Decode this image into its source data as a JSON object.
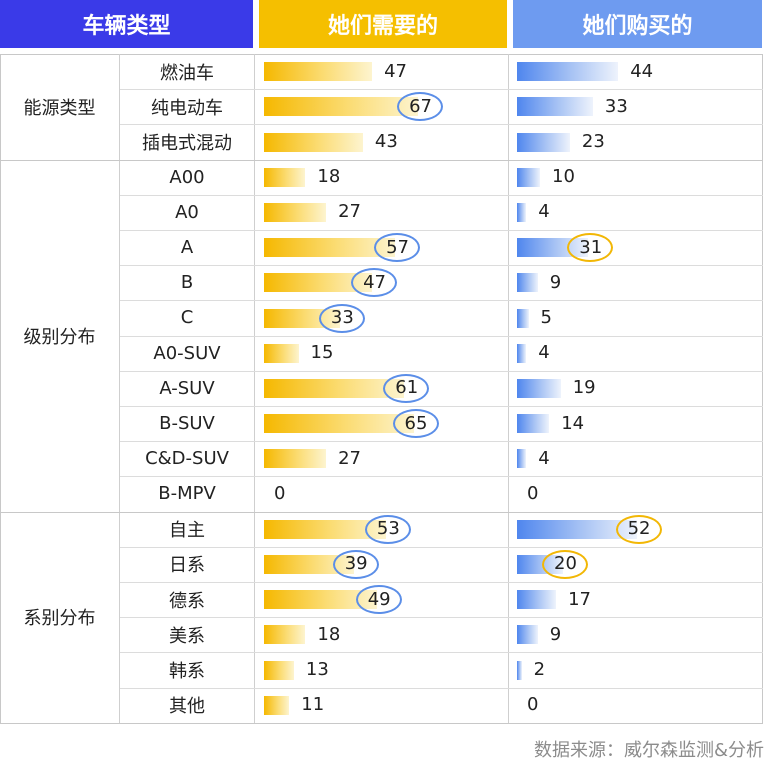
{
  "header": {
    "col1": "车辆类型",
    "col2": "她们需要的",
    "col3": "她们购买的",
    "col1_color": "#3a3ae8",
    "col2_color": "#f5bf00",
    "col3_color": "#6e9bf0"
  },
  "source": "数据来源：威尔森监测&分析",
  "chart_data": {
    "type": "bar",
    "groups": [
      {
        "name": "能源类型",
        "items": [
          "燃油车",
          "纯电动车",
          "插电式混动"
        ]
      },
      {
        "name": "级别分布",
        "items": [
          "A00",
          "A0",
          "A",
          "B",
          "C",
          "A0-SUV",
          "A-SUV",
          "B-SUV",
          "C&D-SUV",
          "B-MPV"
        ]
      },
      {
        "name": "系别分布",
        "items": [
          "自主",
          "日系",
          "德系",
          "美系",
          "韩系",
          "其他"
        ]
      }
    ],
    "categories": [
      "燃油车",
      "纯电动车",
      "插电式混动",
      "A00",
      "A0",
      "A",
      "B",
      "C",
      "A0-SUV",
      "A-SUV",
      "B-SUV",
      "C&D-SUV",
      "B-MPV",
      "自主",
      "日系",
      "德系",
      "美系",
      "韩系",
      "其他"
    ],
    "series": [
      {
        "name": "她们需要的",
        "color": "#f5b800",
        "values": [
          47,
          67,
          43,
          18,
          27,
          57,
          47,
          33,
          15,
          61,
          65,
          27,
          0,
          53,
          39,
          49,
          18,
          13,
          11
        ],
        "highlighted": [
          1,
          5,
          6,
          7,
          9,
          10,
          13,
          14,
          15
        ]
      },
      {
        "name": "她们购买的",
        "color": "#4f86ee",
        "values": [
          44,
          33,
          23,
          10,
          4,
          31,
          9,
          5,
          4,
          19,
          14,
          4,
          0,
          52,
          20,
          17,
          9,
          2,
          0
        ],
        "highlighted": [
          5,
          13,
          14
        ]
      }
    ],
    "highlight_colors": {
      "need": "#5b8ee8",
      "buy": "#f2b705"
    }
  }
}
